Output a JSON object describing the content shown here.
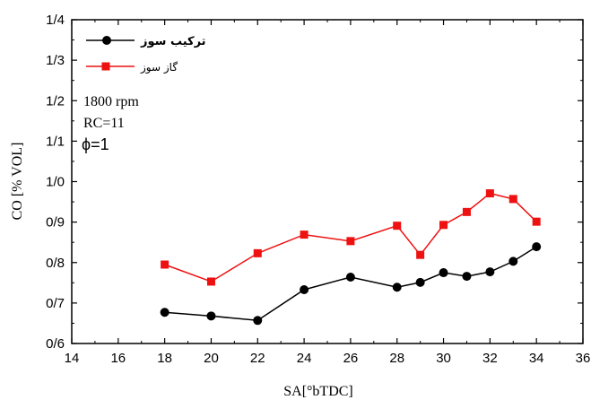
{
  "chart_data": {
    "type": "line",
    "xlabel": "SA[°bTDC]",
    "ylabel": "CO [% VOL]",
    "xlim": [
      14,
      36
    ],
    "ylim": [
      0.6,
      1.4
    ],
    "x_ticks": [
      "14",
      "16",
      "18",
      "20",
      "22",
      "24",
      "26",
      "28",
      "30",
      "32",
      "34",
      "36"
    ],
    "y_ticks": [
      "0/6",
      "0/7",
      "0/8",
      "0/9",
      "1/0",
      "1/1",
      "1/2",
      "1/3",
      "1/4"
    ],
    "annotations": [
      "1800 rpm",
      "RC=11",
      "ϕ=1"
    ],
    "legend_position": "top-left",
    "series": [
      {
        "name": "ترکیب سوز",
        "color": "#000000",
        "marker": "circle",
        "x": [
          18,
          20,
          22,
          24,
          26,
          28,
          29,
          30,
          31,
          32,
          33,
          34
        ],
        "y": [
          0.677,
          0.668,
          0.657,
          0.733,
          0.764,
          0.739,
          0.751,
          0.775,
          0.766,
          0.777,
          0.803,
          0.839
        ]
      },
      {
        "name": "گاز سوز",
        "color": "#ee1111",
        "marker": "square",
        "x": [
          18,
          20,
          22,
          24,
          26,
          28,
          29,
          30,
          31,
          32,
          33,
          34
        ],
        "y": [
          0.795,
          0.753,
          0.823,
          0.869,
          0.853,
          0.891,
          0.819,
          0.893,
          0.925,
          0.971,
          0.957,
          0.901
        ]
      }
    ]
  }
}
